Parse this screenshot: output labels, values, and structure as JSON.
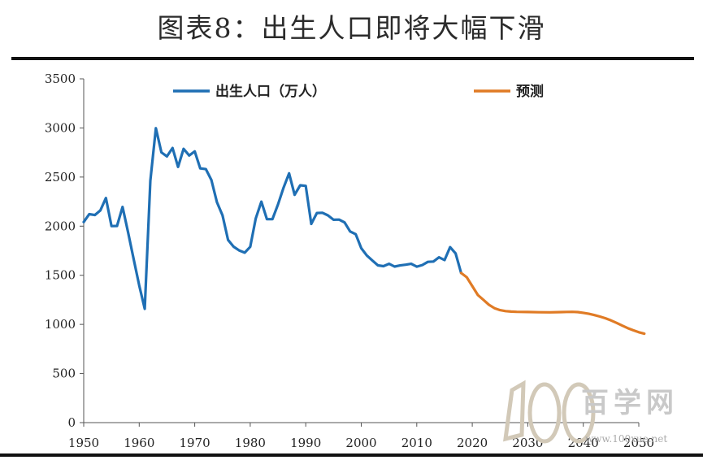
{
  "title": "图表8：出生人口即将大幅下滑",
  "watermark": {
    "brand": "百学网",
    "url": "www.100xue.net"
  },
  "chart_data": {
    "type": "line",
    "title": "图表8：出生人口即将大幅下滑",
    "xlabel": "",
    "ylabel": "",
    "xlim": [
      1950,
      2050
    ],
    "ylim": [
      0,
      3500
    ],
    "x_ticks": [
      "1950",
      "1960",
      "1970",
      "1980",
      "1990",
      "2000",
      "2010",
      "2020",
      "2030",
      "2040",
      "2050"
    ],
    "y_ticks": [
      "0",
      "500",
      "1000",
      "1500",
      "2000",
      "2500",
      "3000",
      "3500"
    ],
    "legend_position": "top",
    "grid": false,
    "series": [
      {
        "name": "出生人口（万人）",
        "color": "#1f6fb4",
        "points": [
          [
            1950,
            2042
          ],
          [
            1951,
            2122
          ],
          [
            1952,
            2113
          ],
          [
            1953,
            2160
          ],
          [
            1954,
            2287
          ],
          [
            1955,
            2001
          ],
          [
            1956,
            2002
          ],
          [
            1957,
            2196
          ],
          [
            1958,
            1937
          ],
          [
            1959,
            1663
          ],
          [
            1960,
            1397
          ],
          [
            1961,
            1158
          ],
          [
            1962,
            2463
          ],
          [
            1963,
            2998
          ],
          [
            1964,
            2751
          ],
          [
            1965,
            2711
          ],
          [
            1966,
            2796
          ],
          [
            1967,
            2603
          ],
          [
            1968,
            2788
          ],
          [
            1969,
            2720
          ],
          [
            1970,
            2761
          ],
          [
            1971,
            2588
          ],
          [
            1972,
            2581
          ],
          [
            1973,
            2470
          ],
          [
            1974,
            2245
          ],
          [
            1975,
            2110
          ],
          [
            1976,
            1860
          ],
          [
            1977,
            1791
          ],
          [
            1978,
            1753
          ],
          [
            1979,
            1730
          ],
          [
            1980,
            1790
          ],
          [
            1981,
            2079
          ],
          [
            1982,
            2250
          ],
          [
            1983,
            2072
          ],
          [
            1984,
            2071
          ],
          [
            1985,
            2220
          ],
          [
            1986,
            2392
          ],
          [
            1987,
            2538
          ],
          [
            1988,
            2319
          ],
          [
            1989,
            2416
          ],
          [
            1990,
            2410
          ],
          [
            1991,
            2023
          ],
          [
            1992,
            2134
          ],
          [
            1993,
            2136
          ],
          [
            1994,
            2110
          ],
          [
            1995,
            2065
          ],
          [
            1996,
            2067
          ],
          [
            1997,
            2038
          ],
          [
            1998,
            1946
          ],
          [
            1999,
            1918
          ],
          [
            2000,
            1776
          ],
          [
            2001,
            1702
          ],
          [
            2002,
            1650
          ],
          [
            2003,
            1601
          ],
          [
            2004,
            1593
          ],
          [
            2005,
            1617
          ],
          [
            2006,
            1589
          ],
          [
            2007,
            1600
          ],
          [
            2008,
            1608
          ],
          [
            2009,
            1617
          ],
          [
            2010,
            1588
          ],
          [
            2011,
            1604
          ],
          [
            2012,
            1637
          ],
          [
            2013,
            1640
          ],
          [
            2014,
            1683
          ],
          [
            2015,
            1655
          ],
          [
            2016,
            1786
          ],
          [
            2017,
            1723
          ],
          [
            2018,
            1523
          ]
        ]
      },
      {
        "name": "预测",
        "color": "#e07b25",
        "points": [
          [
            2018,
            1523
          ],
          [
            2019,
            1480
          ],
          [
            2020,
            1390
          ],
          [
            2021,
            1300
          ],
          [
            2022,
            1250
          ],
          [
            2023,
            1200
          ],
          [
            2024,
            1165
          ],
          [
            2025,
            1145
          ],
          [
            2026,
            1135
          ],
          [
            2027,
            1130
          ],
          [
            2028,
            1128
          ],
          [
            2029,
            1127
          ],
          [
            2030,
            1126
          ],
          [
            2032,
            1124
          ],
          [
            2034,
            1123
          ],
          [
            2036,
            1125
          ],
          [
            2037,
            1127
          ],
          [
            2038,
            1128
          ],
          [
            2039,
            1125
          ],
          [
            2040,
            1118
          ],
          [
            2041,
            1108
          ],
          [
            2042,
            1095
          ],
          [
            2043,
            1080
          ],
          [
            2044,
            1062
          ],
          [
            2045,
            1040
          ],
          [
            2046,
            1015
          ],
          [
            2047,
            988
          ],
          [
            2048,
            962
          ],
          [
            2049,
            940
          ],
          [
            2050,
            920
          ],
          [
            2051,
            905
          ]
        ]
      }
    ]
  }
}
